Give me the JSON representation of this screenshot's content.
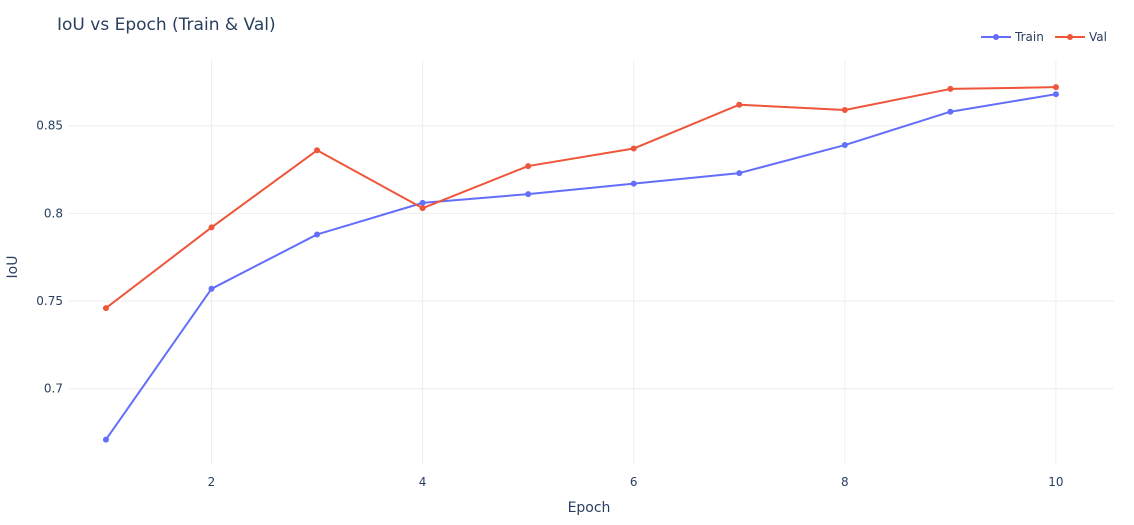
{
  "chart_data": {
    "type": "line",
    "title": "IoU vs Epoch (Train & Val)",
    "xlabel": "Epoch",
    "ylabel": "IoU",
    "x": [
      1,
      2,
      3,
      4,
      5,
      6,
      7,
      8,
      9,
      10
    ],
    "xlim": [
      0.65,
      10.55
    ],
    "ylim": [
      0.6565,
      0.8875
    ],
    "x_ticks": [
      2,
      4,
      6,
      8,
      10
    ],
    "x_tick_labels": [
      "2",
      "4",
      "6",
      "8",
      "10"
    ],
    "y_ticks": [
      0.7,
      0.75,
      0.8,
      0.85
    ],
    "y_tick_labels": [
      "0.7",
      "0.75",
      "0.8",
      "0.85"
    ],
    "grid": true,
    "legend_position": "top-right",
    "series": [
      {
        "name": "Train",
        "color": "#636efa",
        "values": [
          0.671,
          0.757,
          0.788,
          0.806,
          0.811,
          0.817,
          0.823,
          0.839,
          0.858,
          0.868
        ]
      },
      {
        "name": "Val",
        "color": "#ef553b",
        "values": [
          0.746,
          0.792,
          0.836,
          0.803,
          0.827,
          0.837,
          0.862,
          0.859,
          0.871,
          0.872
        ]
      }
    ]
  }
}
